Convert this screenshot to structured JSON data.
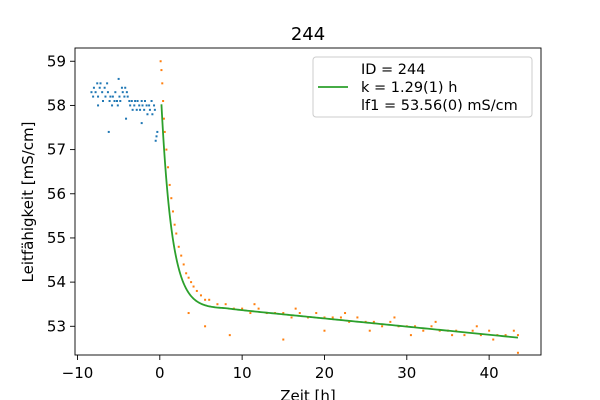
{
  "chart_data": {
    "type": "scatter",
    "title": "244",
    "xlabel": "Zeit [h]",
    "ylabel": "Leitfähigkeit [mS/cm]",
    "xlim": [
      -10.3,
      46.3
    ],
    "ylim": [
      52.35,
      59.3
    ],
    "xticks": [
      -10,
      0,
      10,
      20,
      30,
      40
    ],
    "yticks": [
      53,
      54,
      55,
      56,
      57,
      58,
      59
    ],
    "grid": false,
    "legend": {
      "position": "top-right",
      "entries": [
        "ID = 244",
        "k = 1.29(1) h",
        "lf1 = 53.56(0) mS/cm"
      ]
    },
    "fit": {
      "name": "fit",
      "color": "#2ca02c",
      "model": "exponential-decay",
      "start": 0.2,
      "end": 43.5,
      "initial": 58.8,
      "plateau": 53.4,
      "k_h": 1.29,
      "drift_per_h": -0.0185,
      "drift_from": 8
    },
    "series": [
      {
        "name": "pre",
        "color": "#1f77b4",
        "points": [
          [
            -8.3,
            58.3
          ],
          [
            -8.1,
            58.2
          ],
          [
            -8.0,
            58.4
          ],
          [
            -7.8,
            58.3
          ],
          [
            -7.6,
            58.5
          ],
          [
            -7.5,
            58.2
          ],
          [
            -7.3,
            58.4
          ],
          [
            -7.2,
            58.5
          ],
          [
            -7.0,
            58.3
          ],
          [
            -6.9,
            58.1
          ],
          [
            -6.7,
            58.4
          ],
          [
            -6.6,
            58.2
          ],
          [
            -6.4,
            58.5
          ],
          [
            -6.3,
            58.3
          ],
          [
            -6.1,
            58.1
          ],
          [
            -6.0,
            58.2
          ],
          [
            -5.8,
            58.0
          ],
          [
            -5.7,
            58.2
          ],
          [
            -5.5,
            58.1
          ],
          [
            -5.4,
            58.3
          ],
          [
            -5.2,
            58.1
          ],
          [
            -5.1,
            58.0
          ],
          [
            -4.9,
            58.2
          ],
          [
            -4.8,
            58.1
          ],
          [
            -4.6,
            58.4
          ],
          [
            -4.5,
            58.3
          ],
          [
            -4.3,
            58.2
          ],
          [
            -4.2,
            58.4
          ],
          [
            -4.0,
            58.3
          ],
          [
            -3.9,
            58.2
          ],
          [
            -3.7,
            58.1
          ],
          [
            -3.6,
            58.0
          ],
          [
            -3.4,
            58.1
          ],
          [
            -3.3,
            57.9
          ],
          [
            -3.1,
            58.0
          ],
          [
            -3.0,
            58.1
          ],
          [
            -2.8,
            57.9
          ],
          [
            -2.7,
            58.1
          ],
          [
            -2.5,
            58.0
          ],
          [
            -2.4,
            57.9
          ],
          [
            -2.2,
            58.1
          ],
          [
            -2.1,
            58.0
          ],
          [
            -1.9,
            57.9
          ],
          [
            -1.8,
            58.1
          ],
          [
            -1.6,
            58.0
          ],
          [
            -1.5,
            57.8
          ],
          [
            -1.3,
            58.0
          ],
          [
            -1.2,
            57.9
          ],
          [
            -1.0,
            58.1
          ],
          [
            -0.9,
            57.8
          ],
          [
            -0.7,
            58.0
          ],
          [
            -0.6,
            57.9
          ],
          [
            -0.4,
            57.3
          ],
          [
            -0.3,
            57.4
          ],
          [
            -7.5,
            58.0
          ],
          [
            -6.2,
            57.4
          ],
          [
            -5.0,
            58.6
          ],
          [
            -4.1,
            57.7
          ],
          [
            -2.2,
            57.6
          ],
          [
            -0.5,
            57.2
          ]
        ]
      },
      {
        "name": "post",
        "color": "#ff7f0e",
        "points": [
          [
            0.1,
            59.0
          ],
          [
            0.2,
            58.8
          ],
          [
            0.3,
            58.5
          ],
          [
            0.4,
            58.1
          ],
          [
            0.5,
            57.7
          ],
          [
            0.6,
            57.4
          ],
          [
            0.8,
            57.0
          ],
          [
            1.0,
            56.6
          ],
          [
            1.2,
            56.2
          ],
          [
            1.4,
            55.9
          ],
          [
            1.6,
            55.6
          ],
          [
            1.8,
            55.3
          ],
          [
            2.0,
            55.1
          ],
          [
            2.3,
            54.8
          ],
          [
            2.6,
            54.6
          ],
          [
            2.9,
            54.4
          ],
          [
            3.2,
            54.2
          ],
          [
            3.5,
            54.1
          ],
          [
            3.8,
            54.0
          ],
          [
            4.1,
            53.9
          ],
          [
            4.5,
            53.8
          ],
          [
            5.0,
            53.7
          ],
          [
            5.5,
            53.6
          ],
          [
            6.0,
            53.6
          ],
          [
            7.0,
            53.5
          ],
          [
            8.0,
            53.5
          ],
          [
            9.0,
            53.4
          ],
          [
            10.0,
            53.4
          ],
          [
            11.0,
            53.3
          ],
          [
            12.0,
            53.4
          ],
          [
            13.0,
            53.3
          ],
          [
            14.0,
            53.3
          ],
          [
            15.0,
            53.3
          ],
          [
            16.0,
            53.2
          ],
          [
            17.0,
            53.3
          ],
          [
            18.0,
            53.2
          ],
          [
            19.0,
            53.3
          ],
          [
            20.0,
            53.2
          ],
          [
            21.0,
            53.2
          ],
          [
            22.0,
            53.2
          ],
          [
            23.0,
            53.1
          ],
          [
            24.0,
            53.2
          ],
          [
            25.0,
            53.1
          ],
          [
            26.0,
            53.1
          ],
          [
            27.0,
            53.0
          ],
          [
            28.0,
            53.1
          ],
          [
            29.0,
            53.0
          ],
          [
            30.0,
            53.0
          ],
          [
            31.0,
            53.0
          ],
          [
            32.0,
            52.9
          ],
          [
            33.0,
            53.0
          ],
          [
            34.0,
            52.9
          ],
          [
            35.0,
            52.9
          ],
          [
            36.0,
            52.9
          ],
          [
            37.0,
            52.8
          ],
          [
            38.0,
            52.9
          ],
          [
            39.0,
            52.8
          ],
          [
            40.0,
            52.9
          ],
          [
            41.0,
            52.8
          ],
          [
            42.0,
            52.8
          ],
          [
            43.0,
            52.9
          ],
          [
            43.5,
            52.8
          ],
          [
            3.5,
            53.3
          ],
          [
            5.5,
            53.0
          ],
          [
            8.5,
            52.8
          ],
          [
            15.0,
            52.7
          ],
          [
            20.0,
            52.9
          ],
          [
            25.5,
            52.9
          ],
          [
            30.5,
            52.8
          ],
          [
            35.5,
            52.8
          ],
          [
            40.5,
            52.7
          ],
          [
            43.5,
            52.4
          ],
          [
            11.5,
            53.5
          ],
          [
            16.5,
            53.4
          ],
          [
            22.5,
            53.3
          ],
          [
            28.5,
            53.2
          ],
          [
            33.5,
            53.1
          ],
          [
            38.5,
            53.0
          ]
        ]
      }
    ]
  }
}
